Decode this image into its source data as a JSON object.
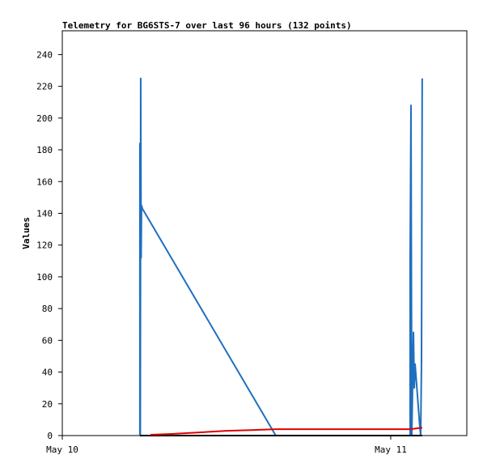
{
  "chart_data": {
    "type": "line",
    "title": "Telemetry for BG6STS-7 over last 96 hours (132 points)",
    "y_label": "Values",
    "xlim": [
      0,
      29.56
    ],
    "xticks": [
      {
        "value": 0,
        "label": "May 10"
      },
      {
        "value": 24,
        "label": "May 11"
      }
    ],
    "ylim": [
      0,
      255
    ],
    "yticks": [
      0,
      20,
      40,
      60,
      80,
      100,
      120,
      140,
      160,
      180,
      200,
      220,
      240
    ],
    "series": [
      {
        "color": "#1f6fc0",
        "x": [
          5.67,
          5.67,
          5.7,
          5.73,
          5.76,
          5.79,
          5.85,
          15.6,
          25.42,
          25.42,
          25.48,
          25.54,
          25.66,
          25.72,
          25.78,
          26.13,
          26.19,
          26.25,
          26.3
        ],
        "values": [
          0,
          184,
          0,
          225,
          112,
          145,
          143,
          0,
          0,
          112,
          208,
          0,
          65,
          30,
          45,
          5,
          0,
          48,
          225
        ]
      },
      {
        "color": "#000000",
        "x": [
          5.67,
          26.3
        ],
        "values": [
          0,
          0
        ]
      },
      {
        "color": "#e00000",
        "x": [
          6.44,
          8,
          10,
          12,
          14,
          15.6,
          20,
          25.4,
          26.3
        ],
        "values": [
          0.5,
          1,
          2,
          3,
          3.5,
          4,
          4,
          4,
          5
        ]
      }
    ]
  }
}
